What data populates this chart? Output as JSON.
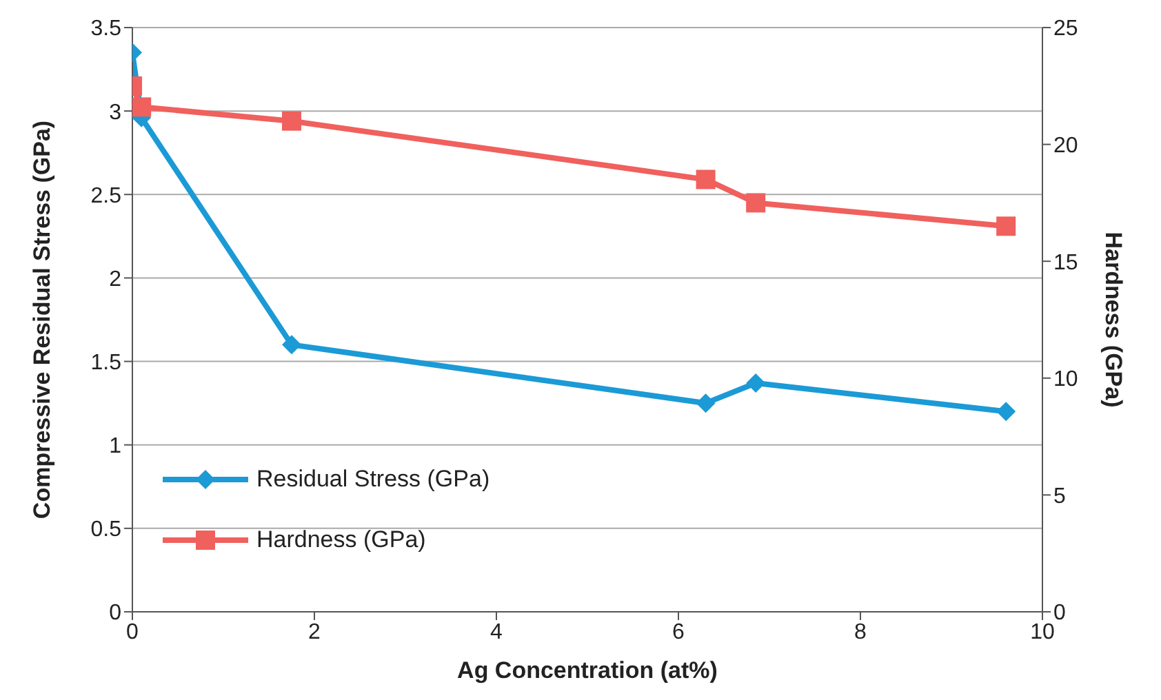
{
  "chart_data": {
    "type": "line",
    "xlabel": "Ag Concentration (at%)",
    "ylabel": "Compressive Residual Stress (GPa)",
    "y2label": "Hardness (GPa)",
    "series": [
      {
        "name": "Residual Stress (GPa)",
        "color": "#1b9ad6",
        "marker": "diamond",
        "x": [
          0,
          0.1,
          1.75,
          6.3,
          6.85,
          9.6
        ],
        "values": [
          3.35,
          2.96,
          1.6,
          1.25,
          1.37,
          1.2
        ]
      },
      {
        "name": "Hardness (GPa)",
        "color": "#f0605d",
        "marker": "square",
        "axis": "y2",
        "x": [
          0,
          0.1,
          1.75,
          6.3,
          6.85,
          9.6
        ],
        "values": [
          22.5,
          21.6,
          21,
          18.5,
          17.5,
          16.5
        ]
      }
    ],
    "xlim": [
      0,
      10
    ],
    "xticks": [
      0,
      2,
      4,
      6,
      8,
      10
    ],
    "ylim": [
      0,
      3.5
    ],
    "yticks": [
      0,
      0.5,
      1,
      1.5,
      2,
      2.5,
      3,
      3.5
    ],
    "y2lim": [
      0,
      25
    ],
    "y2ticks": [
      0,
      5,
      10,
      15,
      20,
      25
    ],
    "grid": "y",
    "legend": "bottom left",
    "line_style": "solid"
  }
}
